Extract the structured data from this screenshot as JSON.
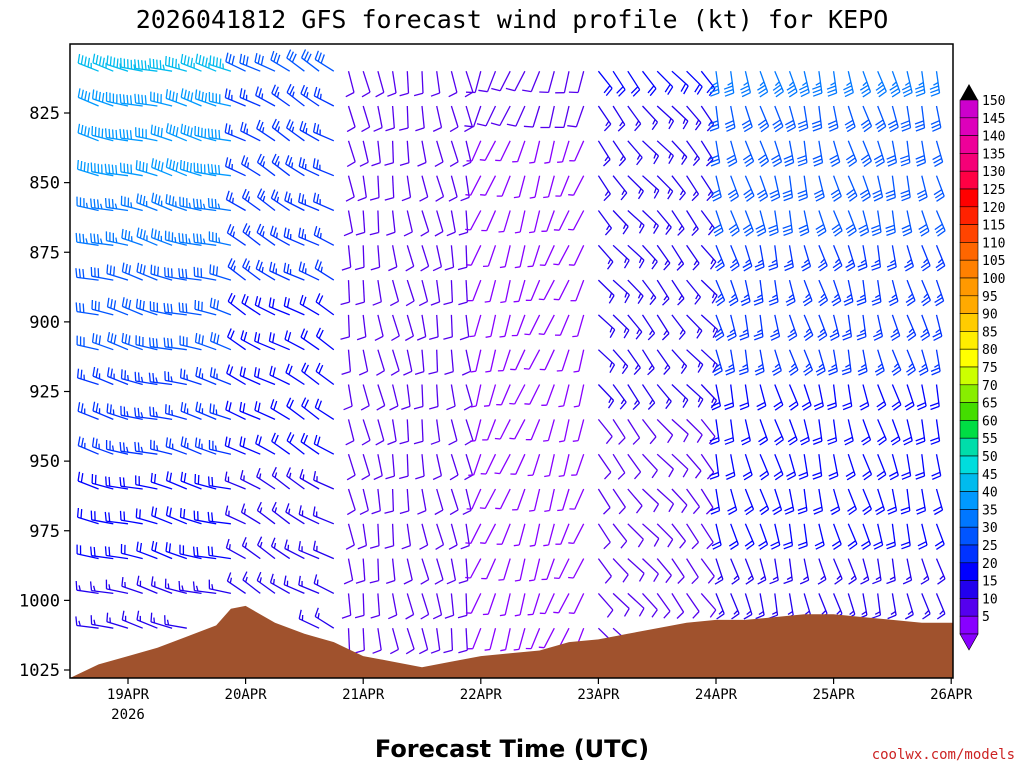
{
  "chart_data": {
    "type": "wind_barb_time_height",
    "title": "2026041812 GFS forecast wind profile (kt) for KEPO",
    "xlabel": "Forecast Time (UTC)",
    "ylabel": "",
    "credit": "coolwx.com/models",
    "y_ticks": [
      "825",
      "850",
      "875",
      "900",
      "925",
      "950",
      "975",
      "1000",
      "1025"
    ],
    "x_ticks": [
      "19APR",
      "20APR",
      "21APR",
      "22APR",
      "23APR",
      "24APR",
      "25APR",
      "26APR"
    ],
    "x_year_label": "2026",
    "units": "kt",
    "colorbar": {
      "labels": [
        "150",
        "145",
        "140",
        "135",
        "130",
        "125",
        "120",
        "115",
        "110",
        "105",
        "100",
        "95",
        "90",
        "85",
        "80",
        "75",
        "70",
        "65",
        "60",
        "55",
        "50",
        "45",
        "40",
        "35",
        "30",
        "25",
        "20",
        "15",
        "10",
        "5"
      ],
      "colors": [
        "#cc00cc",
        "#dd00bb",
        "#ee0099",
        "#f50077",
        "#ff0044",
        "#ff0000",
        "#ff2200",
        "#ff4400",
        "#ff6600",
        "#ff8000",
        "#ff9900",
        "#ffaa00",
        "#ffcc00",
        "#ffee00",
        "#ffff00",
        "#ccff00",
        "#88ee00",
        "#44dd00",
        "#00dd44",
        "#00ddaa",
        "#00dddd",
        "#00bbee",
        "#0099ff",
        "#0077ff",
        "#0055ff",
        "#0033ff",
        "#0000ff",
        "#2200ee",
        "#5500ee",
        "#8800ff"
      ]
    },
    "surface_color": "#a0522d",
    "surface_pressure_hpa": {
      "times_hours_from_19APR00Z": [
        -6,
        0,
        6,
        12,
        18,
        21,
        24,
        30,
        36,
        42,
        48,
        54,
        60,
        66,
        72,
        78,
        84,
        90,
        96,
        102,
        108,
        114,
        120,
        126,
        132,
        138,
        144,
        150,
        156,
        162,
        168
      ],
      "values": [
        1023,
        1020,
        1017,
        1013,
        1009,
        1003,
        1002,
        1008,
        1012,
        1015,
        1020,
        1022,
        1024,
        1022,
        1020,
        1019,
        1018,
        1015,
        1014,
        1012,
        1010,
        1008,
        1007,
        1007,
        1006,
        1005,
        1005,
        1006,
        1007,
        1008,
        1008
      ]
    },
    "wind_regimes": [
      {
        "period": "18APR18Z-20APR00Z",
        "direction_deg": 285,
        "speed_kt_upper": 45,
        "speed_kt_lower": 15
      },
      {
        "period": "20APR00Z-20APR21Z",
        "direction_deg": 300,
        "speed_kt_upper": 30,
        "speed_kt_lower": 15
      },
      {
        "period": "20APR21Z-22APR00Z",
        "direction_deg": 170,
        "speed_kt_upper": 10,
        "speed_kt_lower": 10
      },
      {
        "period": "22APR00Z-23APR00Z",
        "direction_deg": 200,
        "speed_kt_upper": 10,
        "speed_kt_lower": 5
      },
      {
        "period": "23APR00Z-24APR00Z",
        "direction_deg": 140,
        "speed_kt_upper": 20,
        "speed_kt_lower": 10
      },
      {
        "period": "24APR00Z-26APR00Z",
        "direction_deg": 165,
        "speed_kt_upper": 35,
        "speed_kt_lower": 15
      }
    ]
  }
}
